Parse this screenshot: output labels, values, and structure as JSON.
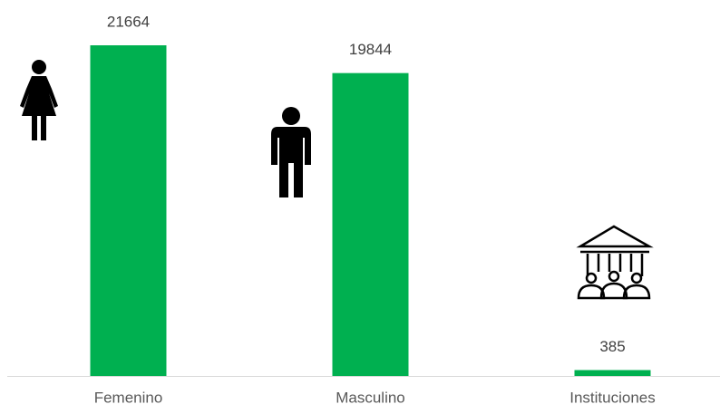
{
  "chart_data": {
    "type": "bar",
    "categories": [
      "Femenino",
      "Masculino",
      "Instituciones"
    ],
    "values": [
      21664,
      19844,
      385
    ],
    "color": "#00b050"
  }
}
